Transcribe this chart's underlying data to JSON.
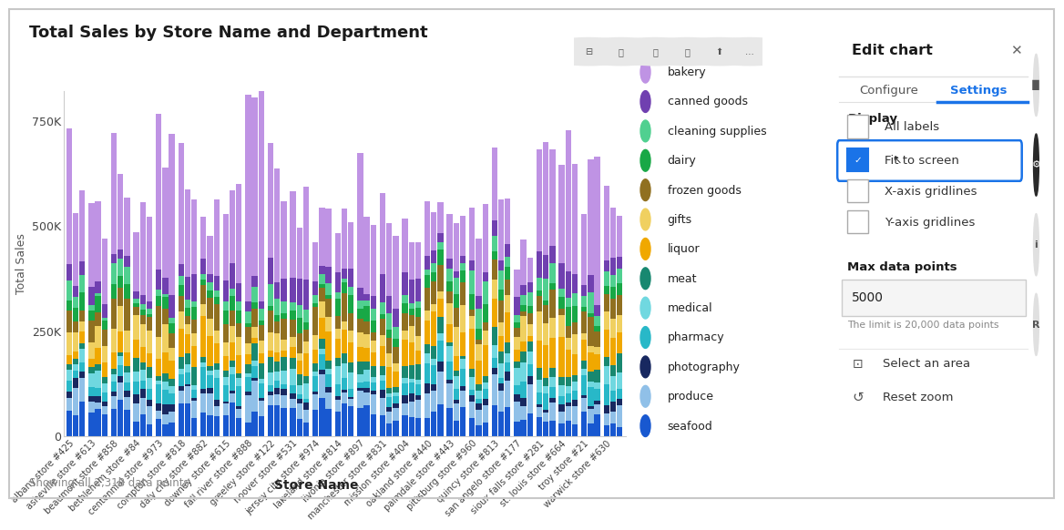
{
  "title": "Total Sales by Store Name and Department",
  "xlabel": "Store Name",
  "ylabel": "Total Sales",
  "yticks": [
    0,
    250000,
    500000,
    750000
  ],
  "ytick_labels": [
    "0",
    "250K",
    "500K",
    "750K"
  ],
  "footer": "Showing all 2,318 data points",
  "stores": [
    "albany store #425",
    "asheville store #613",
    "beaumont store #858",
    "bethlehem store #84",
    "centennial store #973",
    "compton store #818",
    "daly city store #882",
    "downey store #615",
    "fall river store #888",
    "greeley store #122",
    "hoover store #531",
    "jersey city store #974",
    "lakeland store #814",
    "livonia store #897",
    "manchester store #831",
    "mission store #404",
    "oakland store #440",
    "palmdale store #443",
    "pittsburg store #960",
    "quincy store #813",
    "san angelo store #177",
    "sioux falls store #281",
    "st. louis store #664",
    "troy store #21",
    "warwick store #630"
  ],
  "departments": [
    "seafood",
    "produce",
    "photography",
    "pharmacy",
    "medical",
    "meat",
    "liquor",
    "gifts",
    "frozen goods",
    "dairy",
    "cleaning supplies",
    "canned goods",
    "bakery"
  ],
  "dept_colors": {
    "bakery": "#bf93e4",
    "canned goods": "#7040b0",
    "cleaning supplies": "#50d090",
    "dairy": "#18a846",
    "frozen goods": "#907020",
    "gifts": "#f0d060",
    "liquor": "#f0a800",
    "meat": "#188870",
    "medical": "#70d8e0",
    "pharmacy": "#28b8c8",
    "photography": "#182860",
    "produce": "#90c0e8",
    "seafood": "#1858d0"
  },
  "legend_order": [
    "bakery",
    "canned goods",
    "cleaning supplies",
    "dairy",
    "frozen goods",
    "gifts",
    "liquor",
    "meat",
    "medical",
    "pharmacy",
    "photography",
    "produce",
    "seafood"
  ],
  "background_color": "#ffffff",
  "panel_title": "Edit chart",
  "active_tab_color": "#1a73e8",
  "display_label": "Display",
  "checkboxes": [
    {
      "label": "All labels",
      "checked": false
    },
    {
      "label": "Fit to screen",
      "checked": true
    },
    {
      "label": "X-axis gridlines",
      "checked": false
    },
    {
      "label": "Y-axis gridlines",
      "checked": false
    }
  ],
  "max_data_points_label": "Max data points",
  "max_data_points_value": "5000",
  "limit_note": "The limit is 20,000 data points",
  "select_area": "Select an area",
  "reset_zoom": "Reset zoom"
}
